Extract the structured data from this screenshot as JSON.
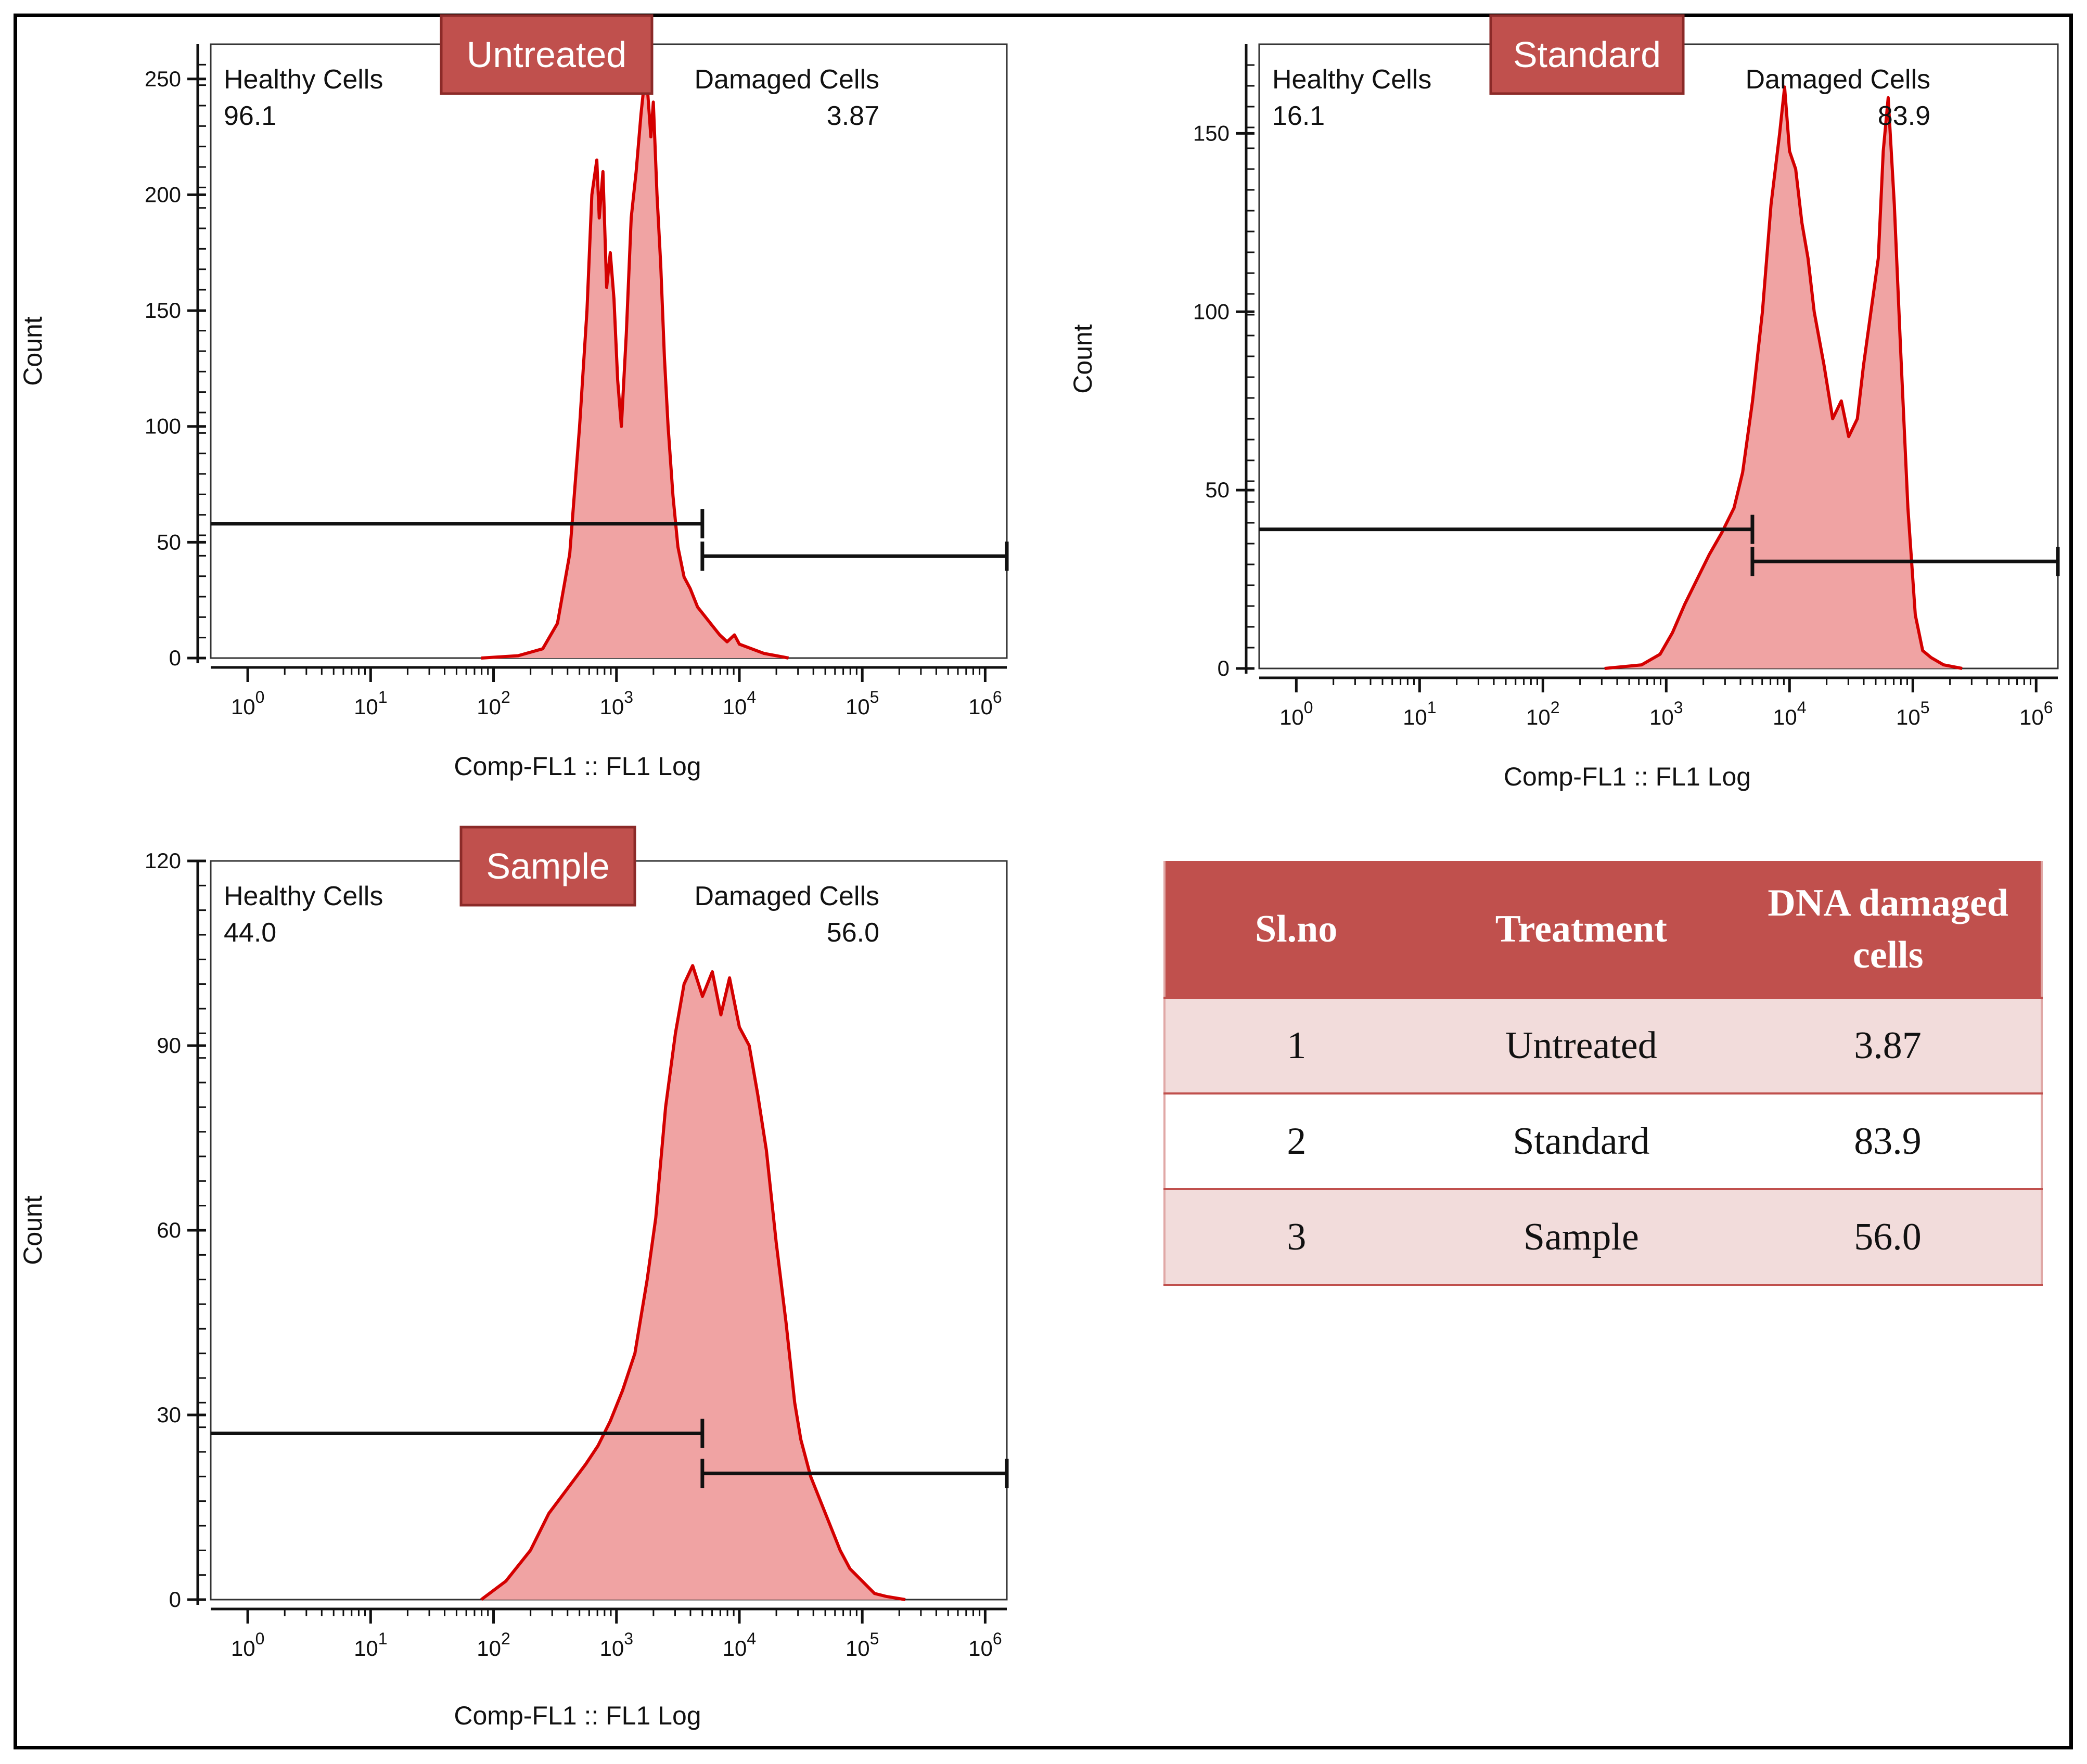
{
  "chart_data": [
    {
      "type": "area",
      "panel_label": "Untreated",
      "xlabel": "Comp-FL1 :: FL1 Log",
      "ylabel": "Count",
      "x_scale": "log",
      "xlim": [
        0.5,
        1500000
      ],
      "ylim": [
        0,
        265
      ],
      "y_ticks": [
        0,
        50,
        100,
        150,
        200,
        250
      ],
      "x_ticks": [
        {
          "base": "10",
          "exp": "0"
        },
        {
          "base": "10",
          "exp": "1"
        },
        {
          "base": "10",
          "exp": "2"
        },
        {
          "base": "10",
          "exp": "3"
        },
        {
          "base": "10",
          "exp": "4"
        },
        {
          "base": "10",
          "exp": "5"
        },
        {
          "base": "10",
          "exp": "6"
        }
      ],
      "gates": [
        {
          "name": "Healthy Cells",
          "value": "96.1",
          "x_range": [
            0.5,
            5000
          ],
          "level": 58
        },
        {
          "name": "Damaged Cells",
          "value": "3.87",
          "x_range": [
            5000,
            1500000
          ],
          "level": 44
        }
      ],
      "series": [
        {
          "name": "Untreated",
          "x_log": [
            1.9,
            2.2,
            2.4,
            2.52,
            2.62,
            2.7,
            2.76,
            2.8,
            2.84,
            2.86,
            2.89,
            2.92,
            2.95,
            2.98,
            3.01,
            3.04,
            3.08,
            3.12,
            3.16,
            3.2,
            3.24,
            3.28,
            3.3,
            3.33,
            3.36,
            3.39,
            3.42,
            3.46,
            3.5,
            3.55,
            3.6,
            3.66,
            3.72,
            3.78,
            3.84,
            3.9,
            3.96,
            4.0,
            4.1,
            4.2,
            4.3,
            4.4
          ],
          "counts": [
            0,
            1,
            4,
            15,
            45,
            100,
            150,
            200,
            215,
            190,
            210,
            160,
            175,
            155,
            120,
            100,
            140,
            190,
            210,
            235,
            255,
            225,
            240,
            200,
            170,
            130,
            100,
            70,
            48,
            35,
            30,
            22,
            18,
            14,
            10,
            7,
            10,
            6,
            4,
            2,
            1,
            0
          ]
        }
      ]
    },
    {
      "type": "area",
      "panel_label": "Standard",
      "xlabel": "Comp-FL1 :: FL1 Log",
      "ylabel": "Count",
      "x_scale": "log",
      "xlim": [
        0.5,
        1500000
      ],
      "ylim": [
        0,
        175
      ],
      "y_ticks": [
        0,
        50,
        100,
        150
      ],
      "x_ticks": [
        {
          "base": "10",
          "exp": "0"
        },
        {
          "base": "10",
          "exp": "1"
        },
        {
          "base": "10",
          "exp": "2"
        },
        {
          "base": "10",
          "exp": "3"
        },
        {
          "base": "10",
          "exp": "4"
        },
        {
          "base": "10",
          "exp": "5"
        },
        {
          "base": "10",
          "exp": "6"
        }
      ],
      "gates": [
        {
          "name": "Healthy Cells",
          "value": "16.1",
          "x_range": [
            0.5,
            5000
          ],
          "level": 39
        },
        {
          "name": "Damaged Cells",
          "value": "83.9",
          "x_range": [
            5000,
            1500000
          ],
          "level": 30
        }
      ],
      "series": [
        {
          "name": "Standard",
          "x_log": [
            2.5,
            2.8,
            2.95,
            3.05,
            3.15,
            3.25,
            3.35,
            3.45,
            3.55,
            3.62,
            3.7,
            3.78,
            3.85,
            3.92,
            3.96,
            4.0,
            4.05,
            4.1,
            4.15,
            4.2,
            4.28,
            4.35,
            4.42,
            4.48,
            4.55,
            4.6,
            4.66,
            4.72,
            4.76,
            4.8,
            4.85,
            4.9,
            4.96,
            5.02,
            5.08,
            5.15,
            5.25,
            5.4
          ],
          "counts": [
            0,
            1,
            4,
            10,
            18,
            25,
            32,
            38,
            45,
            55,
            75,
            100,
            130,
            150,
            163,
            145,
            140,
            125,
            115,
            100,
            85,
            70,
            75,
            65,
            70,
            85,
            100,
            115,
            145,
            160,
            130,
            90,
            45,
            15,
            5,
            3,
            1,
            0
          ]
        }
      ]
    },
    {
      "type": "area",
      "panel_label": "Sample",
      "xlabel": "Comp-FL1 :: FL1 Log",
      "ylabel": "Count",
      "x_scale": "log",
      "xlim": [
        0.5,
        1500000
      ],
      "ylim": [
        0,
        120
      ],
      "y_ticks": [
        0,
        30,
        60,
        90,
        120
      ],
      "x_ticks": [
        {
          "base": "10",
          "exp": "0"
        },
        {
          "base": "10",
          "exp": "1"
        },
        {
          "base": "10",
          "exp": "2"
        },
        {
          "base": "10",
          "exp": "3"
        },
        {
          "base": "10",
          "exp": "4"
        },
        {
          "base": "10",
          "exp": "5"
        },
        {
          "base": "10",
          "exp": "6"
        }
      ],
      "gates": [
        {
          "name": "Healthy Cells",
          "value": "44.0",
          "x_range": [
            0.5,
            5000
          ],
          "level": 27
        },
        {
          "name": "Damaged Cells",
          "value": "56.0",
          "x_range": [
            5000,
            1500000
          ],
          "level": 20.5
        }
      ],
      "series": [
        {
          "name": "Sample",
          "x_log": [
            1.9,
            2.1,
            2.3,
            2.45,
            2.6,
            2.75,
            2.85,
            2.95,
            3.05,
            3.15,
            3.25,
            3.32,
            3.4,
            3.48,
            3.55,
            3.62,
            3.7,
            3.78,
            3.85,
            3.92,
            4.0,
            4.08,
            4.15,
            4.22,
            4.3,
            4.38,
            4.45,
            4.5,
            4.58,
            4.66,
            4.74,
            4.82,
            4.9,
            5.0,
            5.1,
            5.2,
            5.35
          ],
          "counts": [
            0,
            3,
            8,
            14,
            18,
            22,
            25,
            29,
            34,
            40,
            52,
            62,
            80,
            92,
            100,
            103,
            98,
            102,
            95,
            101,
            93,
            90,
            82,
            73,
            58,
            45,
            32,
            26,
            20,
            16,
            12,
            8,
            5,
            3,
            1,
            0.5,
            0
          ]
        }
      ]
    }
  ],
  "table": {
    "headers": [
      "Sl.no",
      "Treatment",
      "DNA damaged cells"
    ],
    "rows": [
      {
        "slno": "1",
        "treatment": "Untreated",
        "damaged": "3.87"
      },
      {
        "slno": "2",
        "treatment": "Standard",
        "damaged": "83.9"
      },
      {
        "slno": "3",
        "treatment": "Sample",
        "damaged": "56.0"
      }
    ]
  },
  "colors": {
    "fill": "#f0a3a3",
    "line": "#d40000",
    "tag": "#c0504d"
  }
}
